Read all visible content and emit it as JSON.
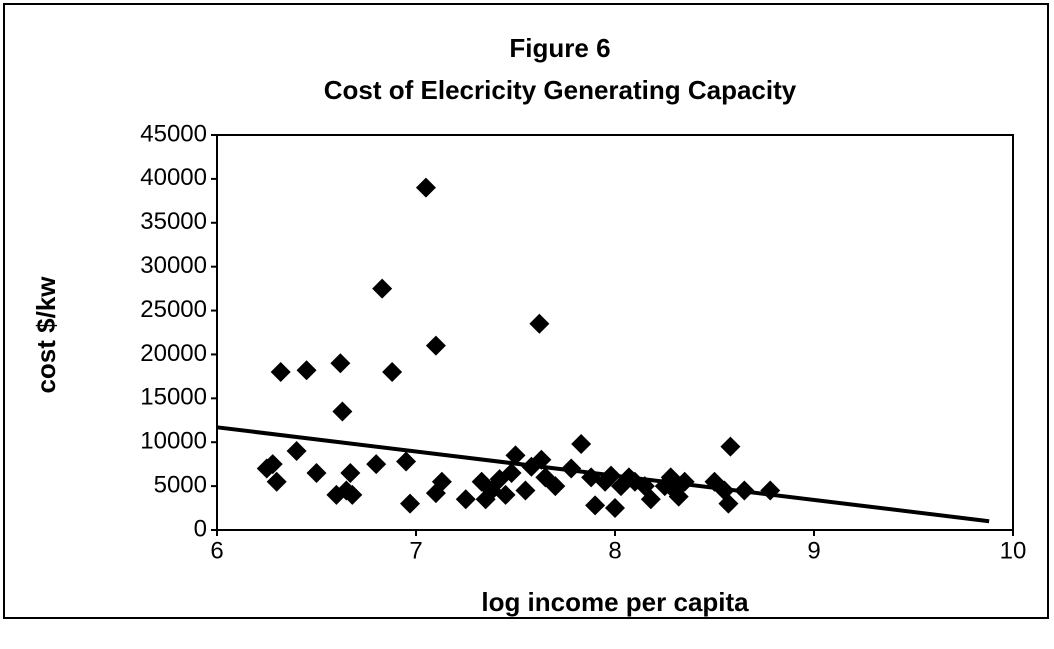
{
  "chart_data": {
    "type": "scatter",
    "title": "Figure 6",
    "subtitle": "Cost of Elecricity Generating Capacity",
    "x_label": "log income per capita",
    "y_label": "cost $/kw",
    "color": "#000000",
    "x": [
      6.25,
      6.28,
      6.3,
      6.32,
      6.4,
      6.45,
      6.5,
      6.6,
      6.62,
      6.63,
      6.65,
      6.67,
      6.68,
      6.8,
      6.83,
      6.88,
      6.95,
      6.97,
      7.05,
      7.1,
      7.1,
      7.13,
      7.25,
      7.33,
      7.35,
      7.38,
      7.42,
      7.45,
      7.48,
      7.5,
      7.55,
      7.58,
      7.62,
      7.63,
      7.65,
      7.7,
      7.78,
      7.83,
      7.88,
      7.9,
      7.95,
      7.98,
      8.0,
      8.03,
      8.07,
      8.1,
      8.15,
      8.18,
      8.25,
      8.28,
      8.3,
      8.32,
      8.35,
      8.5,
      8.55,
      8.57,
      8.58,
      8.65,
      8.78
    ],
    "values": [
      7000,
      7500,
      5500,
      18000,
      9000,
      18200,
      6500,
      4000,
      19000,
      13500,
      4500,
      6500,
      4000,
      7500,
      27500,
      18000,
      7800,
      3000,
      39000,
      21000,
      4200,
      5500,
      3500,
      5500,
      3500,
      4500,
      5800,
      4000,
      6500,
      8500,
      4500,
      7200,
      23500,
      8000,
      6000,
      5000,
      7000,
      9800,
      6000,
      2800,
      5500,
      6200,
      2500,
      5000,
      6000,
      5500,
      5000,
      3500,
      5000,
      6000,
      4500,
      3800,
      5500,
      5500,
      4500,
      3000,
      9500,
      4500,
      4500
    ],
    "trendline": {
      "x": [
        6,
        9.88
      ],
      "values": [
        11700,
        1000
      ]
    },
    "xlim": [
      6,
      10
    ],
    "xticks": [
      6,
      7,
      8,
      9,
      10
    ],
    "ylim": [
      0,
      45000
    ],
    "yticks": [
      0,
      5000,
      10000,
      15000,
      20000,
      25000,
      30000,
      35000,
      40000,
      45000
    ]
  }
}
